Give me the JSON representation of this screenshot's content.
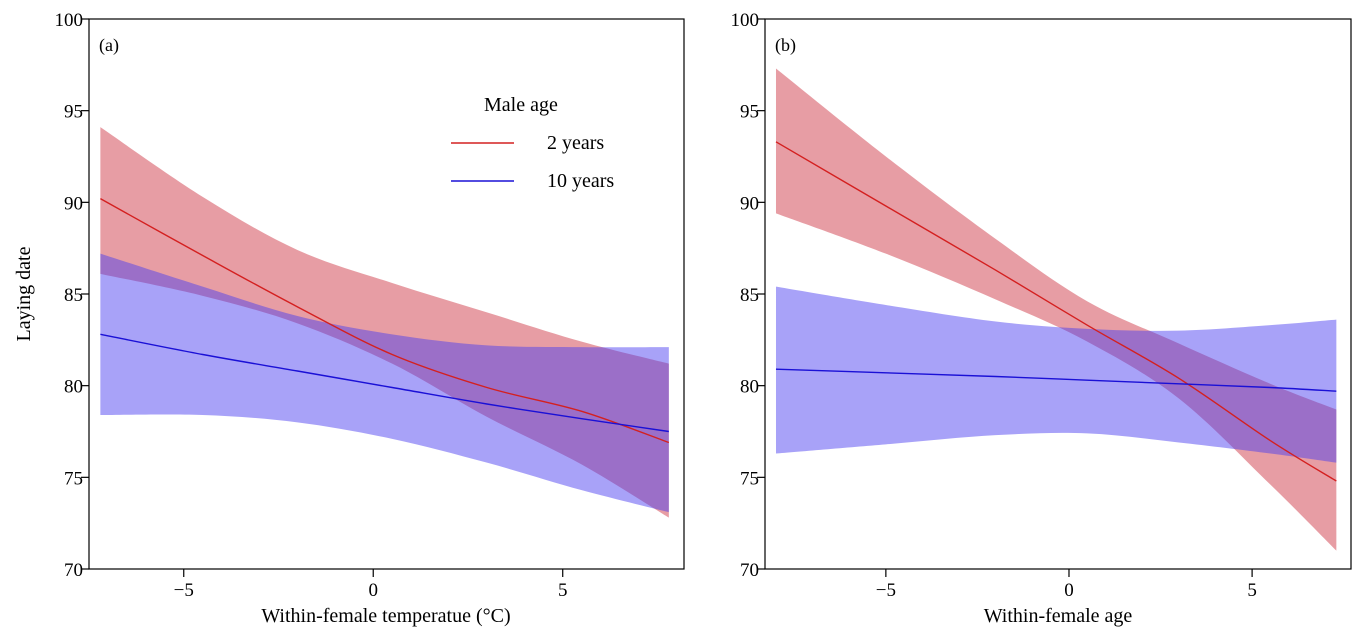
{
  "chart_data": [
    {
      "type": "line",
      "panel_label": "(a)",
      "xlabel": "Within-female temperatue (°C)",
      "ylabel": "Laying date",
      "xlim": [
        -7.5,
        8.2
      ],
      "ylim": [
        70,
        100
      ],
      "xticks": [
        -5,
        0,
        5
      ],
      "xtick_labels": [
        "−5",
        "0",
        "5"
      ],
      "yticks": [
        70,
        75,
        80,
        85,
        90,
        95,
        100
      ],
      "ytick_labels": [
        "70",
        "75",
        "80",
        "85",
        "90",
        "95",
        "100"
      ],
      "grid": false,
      "legend": {
        "title": "Male age",
        "placement": "top-right",
        "entries": [
          {
            "label": "2 years",
            "color": "#d42020"
          },
          {
            "label": "10 years",
            "color": "#1a10d6"
          }
        ]
      },
      "series": [
        {
          "color": "#d42020",
          "band_color": "#cd3340",
          "x": [
            -7.2,
            -4.5,
            -2.0,
            0.5,
            3.0,
            5.5,
            7.8
          ],
          "y": [
            90.2,
            87.1,
            84.3,
            81.7,
            79.9,
            78.6,
            76.9
          ],
          "lower": [
            86.1,
            84.9,
            83.4,
            81.2,
            78.3,
            75.7,
            72.8
          ],
          "upper": [
            94.1,
            90.3,
            87.4,
            85.6,
            84.0,
            82.4,
            81.2
          ]
        },
        {
          "color": "#1a10d6",
          "band_color": "#4a3cf0",
          "x": [
            -7.2,
            -4.5,
            -2.0,
            0.5,
            3.0,
            5.5,
            7.8
          ],
          "y": [
            82.8,
            81.7,
            80.8,
            79.9,
            79.0,
            78.2,
            77.5
          ],
          "lower": [
            78.4,
            78.4,
            78.0,
            77.1,
            75.8,
            74.3,
            73.1
          ],
          "upper": [
            87.2,
            85.4,
            83.8,
            82.8,
            82.2,
            82.1,
            82.1
          ]
        }
      ]
    },
    {
      "type": "line",
      "panel_label": "(b)",
      "xlabel": "Within-female age",
      "ylabel": "",
      "xlim": [
        -8.3,
        7.7
      ],
      "ylim": [
        70,
        100
      ],
      "xticks": [
        -5,
        0,
        5
      ],
      "xtick_labels": [
        "−5",
        "0",
        "5"
      ],
      "yticks": [
        70,
        75,
        80,
        85,
        90,
        95,
        100
      ],
      "ytick_labels": [
        "70",
        "75",
        "80",
        "85",
        "90",
        "95",
        "100"
      ],
      "grid": false,
      "series": [
        {
          "color": "#d42020",
          "band_color": "#cd3340",
          "x": [
            -8.0,
            -5.0,
            -2.0,
            0.5,
            3.0,
            5.5,
            7.3
          ],
          "y": [
            93.3,
            89.8,
            86.3,
            83.3,
            80.4,
            77.0,
            74.8
          ],
          "lower": [
            89.4,
            87.2,
            84.7,
            82.4,
            79.3,
            74.6,
            71.0
          ],
          "upper": [
            97.3,
            92.5,
            88.0,
            84.6,
            82.3,
            80.1,
            78.7
          ]
        },
        {
          "color": "#1a10d6",
          "band_color": "#4a3cf0",
          "x": [
            -8.0,
            -5.0,
            -2.0,
            0.5,
            3.0,
            5.5,
            7.3
          ],
          "y": [
            80.9,
            80.7,
            80.5,
            80.3,
            80.1,
            79.9,
            79.7
          ],
          "lower": [
            76.3,
            76.8,
            77.3,
            77.4,
            76.9,
            76.3,
            75.8
          ],
          "upper": [
            85.4,
            84.4,
            83.5,
            83.1,
            83.0,
            83.3,
            83.6
          ]
        }
      ]
    }
  ]
}
